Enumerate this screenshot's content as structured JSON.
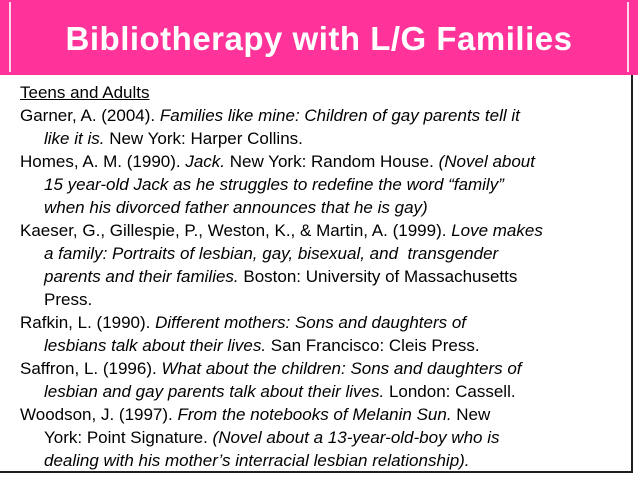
{
  "title": "Bibliotherapy with L/G Families",
  "colors": {
    "banner_pink": "#ff3399",
    "title_text": "#ffffff",
    "body_text": "#000000",
    "frame_line": "#1f1f1f"
  },
  "body": {
    "heading": "Teens and Adults",
    "references": [
      {
        "lines": [
          [
            {
              "t": "Garner, A. (2004). ",
              "i": false
            },
            {
              "t": "Families like mine: Children of gay parents tell it",
              "i": true
            }
          ],
          [
            {
              "t": "like it is.",
              "i": true
            },
            {
              "t": " New York: Harper Collins.",
              "i": false
            }
          ]
        ]
      },
      {
        "lines": [
          [
            {
              "t": "Homes, A. M. (1990). ",
              "i": false
            },
            {
              "t": "Jack.",
              "i": true
            },
            {
              "t": " New York: Random House. ",
              "i": false
            },
            {
              "t": "(Novel about",
              "i": true
            }
          ],
          [
            {
              "t": "15 year-old Jack as he struggles to redefine the word “family”",
              "i": true
            }
          ],
          [
            {
              "t": "when his divorced father announces that he is gay)",
              "i": true
            }
          ]
        ]
      },
      {
        "lines": [
          [
            {
              "t": "Kaeser, G., Gillespie, P., Weston, K., & Martin, A. (1999). ",
              "i": false
            },
            {
              "t": "Love makes",
              "i": true
            }
          ],
          [
            {
              "t": "a family: Portraits of lesbian, gay, bisexual, and  transgender",
              "i": true
            }
          ],
          [
            {
              "t": "parents and their families.",
              "i": true
            },
            {
              "t": " Boston: University of Massachusetts",
              "i": false
            }
          ],
          [
            {
              "t": "Press.",
              "i": false
            }
          ]
        ]
      },
      {
        "lines": [
          [
            {
              "t": "Rafkin, L. (1990). ",
              "i": false
            },
            {
              "t": "Different mothers: Sons and daughters of",
              "i": true
            }
          ],
          [
            {
              "t": "lesbians talk about their lives.",
              "i": true
            },
            {
              "t": " San Francisco: Cleis Press.",
              "i": false
            }
          ]
        ]
      },
      {
        "lines": [
          [
            {
              "t": "Saffron, L. (1996). ",
              "i": false
            },
            {
              "t": "What about the children: Sons and daughters of",
              "i": true
            }
          ],
          [
            {
              "t": "lesbian and gay parents talk about their lives.",
              "i": true
            },
            {
              "t": " London: Cassell.",
              "i": false
            }
          ]
        ]
      },
      {
        "lines": [
          [
            {
              "t": "Woodson, J. (1997). ",
              "i": false
            },
            {
              "t": "From the notebooks of Melanin Sun.",
              "i": true
            },
            {
              "t": " New",
              "i": false
            }
          ],
          [
            {
              "t": "York: Point Signature. ",
              "i": false
            },
            {
              "t": "(Novel about a 13-year-old-boy who is",
              "i": true
            }
          ],
          [
            {
              "t": "dealing with his mother’s interracial lesbian relationship).",
              "i": true
            }
          ]
        ]
      }
    ]
  }
}
